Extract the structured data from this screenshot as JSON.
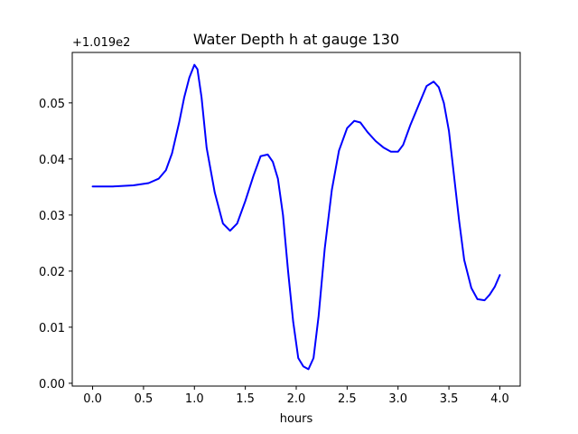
{
  "chart_data": {
    "type": "line",
    "title": "Water Depth h at gauge 130",
    "xlabel": "hours",
    "ylabel": "",
    "offset_text": "+1.019e2",
    "xlim": [
      -0.2,
      4.2
    ],
    "ylim": [
      -0.0005,
      0.059
    ],
    "x_ticks": [
      0.0,
      0.5,
      1.0,
      1.5,
      2.0,
      2.5,
      3.0,
      3.5,
      4.0
    ],
    "x_tick_labels": [
      "0.0",
      "0.5",
      "1.0",
      "1.5",
      "2.0",
      "2.5",
      "3.0",
      "3.5",
      "4.0"
    ],
    "y_ticks": [
      0.0,
      0.01,
      0.02,
      0.03,
      0.04,
      0.05
    ],
    "y_tick_labels": [
      "0.00",
      "0.01",
      "0.02",
      "0.03",
      "0.04",
      "0.05"
    ],
    "grid": false,
    "line_color": "#0000ff",
    "series": [
      {
        "x": [
          0.0,
          0.2,
          0.4,
          0.55,
          0.65,
          0.72,
          0.78,
          0.85,
          0.9,
          0.95,
          1.0,
          1.03,
          1.07,
          1.12,
          1.2,
          1.28,
          1.35,
          1.42,
          1.5,
          1.58,
          1.65,
          1.72,
          1.77,
          1.82,
          1.87,
          1.92,
          1.97,
          2.02,
          2.07,
          2.12,
          2.17,
          2.22,
          2.28,
          2.35,
          2.42,
          2.5,
          2.57,
          2.63,
          2.7,
          2.78,
          2.86,
          2.93,
          3.0,
          3.05,
          3.12,
          3.2,
          3.28,
          3.35,
          3.4,
          3.45,
          3.5,
          3.55,
          3.6,
          3.65,
          3.72,
          3.78,
          3.85,
          3.9,
          3.95,
          4.0
        ],
        "y": [
          0.0351,
          0.0351,
          0.0353,
          0.0357,
          0.0365,
          0.038,
          0.041,
          0.0465,
          0.051,
          0.0545,
          0.0568,
          0.056,
          0.051,
          0.042,
          0.034,
          0.0285,
          0.0272,
          0.0285,
          0.0325,
          0.037,
          0.0405,
          0.0408,
          0.0395,
          0.0365,
          0.03,
          0.02,
          0.011,
          0.0045,
          0.003,
          0.0025,
          0.0045,
          0.012,
          0.024,
          0.0345,
          0.0415,
          0.0455,
          0.0468,
          0.0465,
          0.0448,
          0.0432,
          0.042,
          0.0413,
          0.0413,
          0.0425,
          0.046,
          0.0495,
          0.053,
          0.0538,
          0.0528,
          0.05,
          0.045,
          0.037,
          0.029,
          0.022,
          0.017,
          0.015,
          0.0148,
          0.0158,
          0.0172,
          0.0193
        ]
      }
    ]
  }
}
